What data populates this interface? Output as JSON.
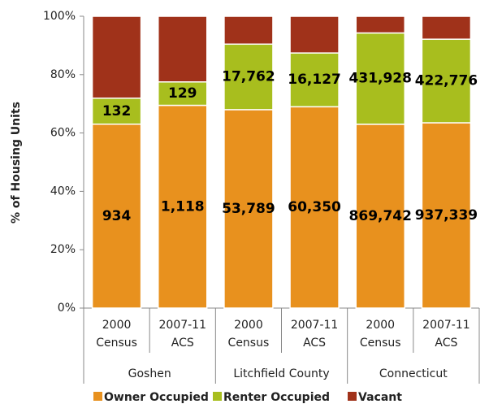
{
  "chart_data": {
    "type": "bar",
    "stacked": "percent",
    "y_label": "% of Housing Units",
    "categories": [
      [
        "2000",
        "Census"
      ],
      [
        "2007-11",
        "ACS"
      ],
      [
        "2000",
        "Census"
      ],
      [
        "2007-11",
        "ACS"
      ],
      [
        "2000",
        "Census"
      ],
      [
        "2007-11",
        "ACS"
      ]
    ],
    "groups": [
      "Goshen",
      "Litchfield County",
      "Connecticut"
    ],
    "series": [
      {
        "name": "Owner Occupied",
        "color": "#e8911e",
        "values": [
          934,
          1118,
          53789,
          60350,
          869742,
          937339
        ],
        "value_labels": [
          "934",
          "1,118",
          "53,789",
          "60,350",
          "869,742",
          "937,339"
        ]
      },
      {
        "name": "Renter Occupied",
        "color": "#a8be1e",
        "values": [
          132,
          129,
          17762,
          16127,
          431928,
          422776
        ],
        "value_labels": [
          "132",
          "129",
          "17,762",
          "16,127",
          "431,928",
          "422,776"
        ]
      },
      {
        "name": "Vacant",
        "color": "#a0321a",
        "values": [
          416,
          362,
          7550,
          11000,
          79000,
          116000
        ]
      }
    ],
    "ylim": [
      0,
      100
    ],
    "yticks": [
      {
        "value": 0,
        "label": "0%"
      },
      {
        "value": 20,
        "label": "20%"
      },
      {
        "value": 40,
        "label": "40%"
      },
      {
        "value": 60,
        "label": "60%"
      },
      {
        "value": 80,
        "label": "80%"
      },
      {
        "value": 100,
        "label": "100%"
      }
    ],
    "legend": "bottom"
  }
}
